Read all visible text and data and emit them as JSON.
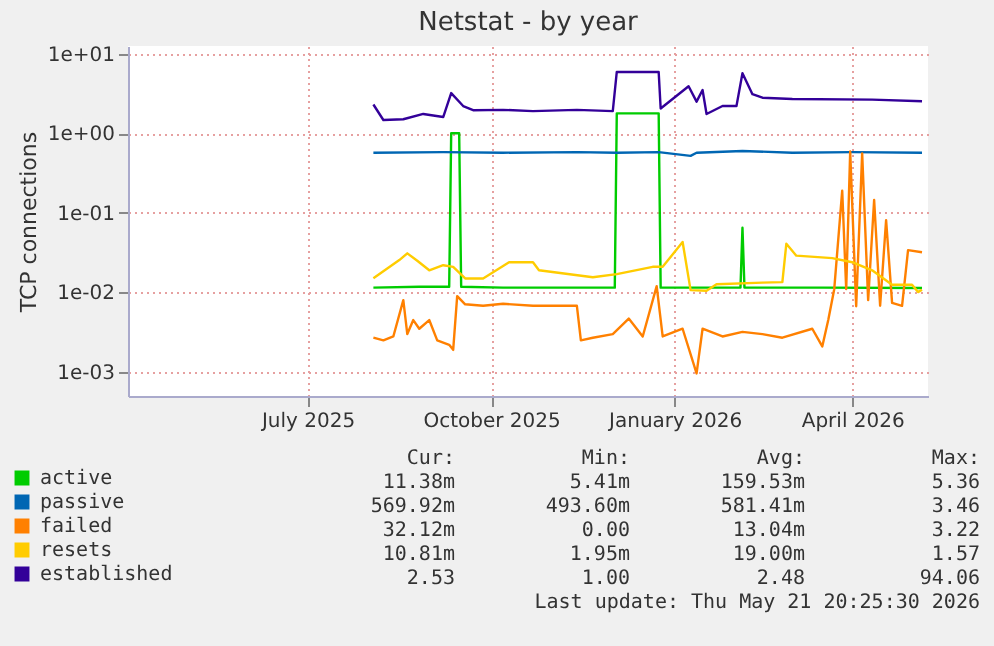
{
  "chart_data": {
    "type": "line",
    "title": "Netstat - by year",
    "ylabel": "TCP connections",
    "log": "y",
    "grid": true,
    "legend": "bottom",
    "xlim": [
      "2025-04-17",
      "2026-05-23"
    ],
    "xticks": [
      {
        "value": "2025-07-16",
        "label": "July 2025"
      },
      {
        "value": "2025-10-16",
        "label": "October 2025"
      },
      {
        "value": "2026-01-16",
        "label": "January 2026"
      },
      {
        "value": "2026-04-15",
        "label": "April 2026"
      }
    ],
    "ylim": [
      0.0005,
      12.5
    ],
    "yticks": [
      {
        "value": 0.001,
        "label": "1e-03"
      },
      {
        "value": 0.01,
        "label": "1e-02"
      },
      {
        "value": 0.1,
        "label": "1e-01"
      },
      {
        "value": 1,
        "label": "1e+00"
      },
      {
        "value": 10,
        "label": "1e+01"
      }
    ],
    "series": [
      {
        "name": "active",
        "color": "#00cc00",
        "x": [
          "2025-08-18",
          "2025-09-10",
          "2025-09-25",
          "2025-09-26",
          "2025-09-30",
          "2025-10-01",
          "2025-10-22",
          "2025-11-28",
          "2025-12-17",
          "2025-12-18",
          "2026-01-08",
          "2026-01-09",
          "2026-02-18",
          "2026-02-19",
          "2026-02-20",
          "2026-03-31",
          "2026-05-20"
        ],
        "values": [
          0.0115,
          0.0118,
          0.0118,
          1.0,
          1.0,
          0.0118,
          0.0115,
          0.0115,
          0.0115,
          1.78,
          1.78,
          0.0115,
          0.0115,
          0.065,
          0.0115,
          0.0115,
          0.0114
        ]
      },
      {
        "name": "passive",
        "color": "#0066b3",
        "x": [
          "2025-08-18",
          "2025-09-22",
          "2025-10-22",
          "2025-11-28",
          "2025-12-18",
          "2026-01-08",
          "2026-01-24",
          "2026-01-27",
          "2026-02-19",
          "2026-03-16",
          "2026-04-15",
          "2026-05-20"
        ],
        "values": [
          0.57,
          0.58,
          0.57,
          0.58,
          0.57,
          0.58,
          0.52,
          0.57,
          0.6,
          0.57,
          0.58,
          0.57
        ]
      },
      {
        "name": "failed",
        "color": "#ff8000",
        "x": [
          "2025-08-18",
          "2025-08-23",
          "2025-08-28",
          "2025-09-02",
          "2025-09-04",
          "2025-09-07",
          "2025-09-10",
          "2025-09-15",
          "2025-09-19",
          "2025-09-25",
          "2025-09-27",
          "2025-09-29",
          "2025-10-03",
          "2025-10-12",
          "2025-10-22",
          "2025-11-06",
          "2025-11-28",
          "2025-11-30",
          "2025-12-06",
          "2025-12-16",
          "2025-12-24",
          "2025-12-31",
          "2026-01-07",
          "2026-01-10",
          "2026-01-20",
          "2026-01-27",
          "2026-01-30",
          "2026-02-09",
          "2026-02-19",
          "2026-03-01",
          "2026-03-11",
          "2026-03-26",
          "2026-03-31",
          "2026-04-03",
          "2026-04-06",
          "2026-04-10",
          "2026-04-12",
          "2026-04-14",
          "2026-04-17",
          "2026-04-20",
          "2026-04-23",
          "2026-04-26",
          "2026-04-29",
          "2026-05-02",
          "2026-05-05",
          "2026-05-10",
          "2026-05-13",
          "2026-05-20"
        ],
        "values": [
          0.0027,
          0.0025,
          0.0028,
          0.008,
          0.003,
          0.0045,
          0.0035,
          0.0045,
          0.0025,
          0.0022,
          0.0019,
          0.009,
          0.0071,
          0.0068,
          0.0072,
          0.0068,
          0.0068,
          0.0025,
          0.0027,
          0.003,
          0.0047,
          0.0028,
          0.012,
          0.0028,
          0.0035,
          0.00096,
          0.0035,
          0.0028,
          0.0032,
          0.003,
          0.0027,
          0.0035,
          0.0021,
          0.0045,
          0.011,
          0.19,
          0.011,
          0.59,
          0.0067,
          0.56,
          0.008,
          0.145,
          0.0068,
          0.081,
          0.0074,
          0.0068,
          0.034,
          0.032
        ]
      },
      {
        "name": "resets",
        "color": "#ffcc00",
        "x": [
          "2025-08-18",
          "2025-08-31",
          "2025-09-04",
          "2025-09-09",
          "2025-09-15",
          "2025-09-22",
          "2025-09-27",
          "2025-10-03",
          "2025-10-12",
          "2025-10-25",
          "2025-11-06",
          "2025-11-09",
          "2025-12-06",
          "2025-12-18",
          "2026-01-05",
          "2026-01-10",
          "2026-01-20",
          "2026-01-24",
          "2026-02-01",
          "2026-02-06",
          "2026-03-01",
          "2026-03-11",
          "2026-03-13",
          "2026-03-18",
          "2026-04-05",
          "2026-04-15",
          "2026-04-25",
          "2026-05-05",
          "2026-05-15",
          "2026-05-18",
          "2026-05-20"
        ],
        "values": [
          0.0151,
          0.0255,
          0.031,
          0.025,
          0.019,
          0.022,
          0.021,
          0.015,
          0.015,
          0.024,
          0.024,
          0.019,
          0.0155,
          0.017,
          0.021,
          0.021,
          0.043,
          0.0107,
          0.0105,
          0.0127,
          0.0133,
          0.0135,
          0.041,
          0.029,
          0.027,
          0.024,
          0.019,
          0.0125,
          0.0125,
          0.0101,
          0.0108
        ]
      },
      {
        "name": "established",
        "color": "#330099",
        "x": [
          "2025-08-18",
          "2025-08-23",
          "2025-09-02",
          "2025-09-12",
          "2025-09-22",
          "2025-09-26",
          "2025-10-02",
          "2025-10-07",
          "2025-10-22",
          "2025-11-06",
          "2025-11-28",
          "2025-12-16",
          "2025-12-18",
          "2026-01-08",
          "2026-01-09",
          "2026-01-23",
          "2026-01-27",
          "2026-01-30",
          "2026-02-01",
          "2026-02-09",
          "2026-02-16",
          "2026-02-19",
          "2026-02-24",
          "2026-03-01",
          "2026-03-16",
          "2026-04-25",
          "2026-05-20"
        ],
        "values": [
          2.3,
          1.47,
          1.5,
          1.75,
          1.6,
          3.2,
          2.2,
          1.95,
          1.97,
          1.9,
          1.97,
          1.9,
          5.9,
          5.9,
          2.05,
          3.9,
          2.5,
          3.5,
          1.75,
          2.2,
          2.2,
          5.7,
          3.1,
          2.8,
          2.7,
          2.65,
          2.53
        ]
      }
    ],
    "annotations": [
      "Cur:",
      "Min:",
      "Avg:",
      "Max:",
      "11.38m",
      "5.41m",
      "159.53m",
      "5.36",
      "569.92m",
      "493.60m",
      "581.41m",
      "3.46",
      "32.12m",
      "0.00",
      "13.04m",
      "3.22",
      "10.81m",
      "1.95m",
      "19.00m",
      "1.57",
      "2.53",
      "1.00",
      "2.48",
      "94.06",
      "Last update: Thu May 21 20:25:30 2026"
    ]
  }
}
